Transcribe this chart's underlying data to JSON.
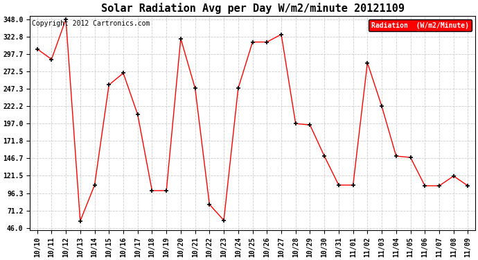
{
  "title": "Solar Radiation Avg per Day W/m2/minute 20121109",
  "copyright_text": "Copyright 2012 Cartronics.com",
  "legend_label": "Radiation  (W/m2/Minute)",
  "dates": [
    "10/10",
    "10/11",
    "10/12",
    "10/13",
    "10/14",
    "10/15",
    "10/16",
    "10/17",
    "10/18",
    "10/19",
    "10/20",
    "10/21",
    "10/22",
    "10/23",
    "10/24",
    "10/25",
    "10/26",
    "10/27",
    "10/28",
    "10/29",
    "10/30",
    "10/31",
    "11/01",
    "11/02",
    "11/03",
    "11/04",
    "11/05",
    "11/06",
    "11/07",
    "11/08",
    "11/09"
  ],
  "values": [
    305.0,
    290.0,
    348.0,
    56.0,
    108.0,
    253.0,
    270.0,
    210.0,
    100.0,
    100.0,
    320.0,
    248.0,
    80.0,
    57.0,
    248.0,
    315.0,
    315.0,
    326.0,
    197.0,
    195.0,
    150.0,
    108.0,
    108.0,
    285.0,
    222.0,
    150.0,
    148.0,
    107.0,
    107.0,
    121.0,
    107.0
  ],
  "y_ticks": [
    46.0,
    71.2,
    96.3,
    121.5,
    146.7,
    171.8,
    197.0,
    222.2,
    247.3,
    272.5,
    297.7,
    322.8,
    348.0
  ],
  "y_min": 46.0,
  "y_max": 348.0,
  "line_color": "red",
  "marker_color": "black",
  "background_color": "#ffffff",
  "grid_color": "#c8c8c8",
  "legend_bg": "red",
  "legend_text_color": "white",
  "title_fontsize": 11,
  "tick_fontsize": 7,
  "copyright_fontsize": 7
}
